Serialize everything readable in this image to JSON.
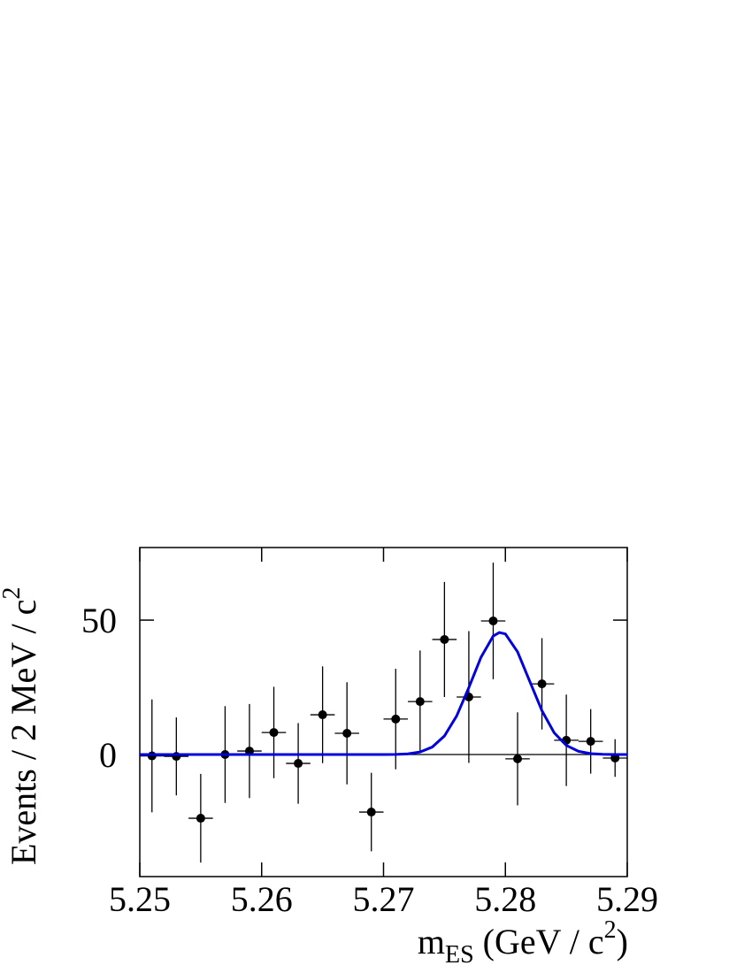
{
  "chart_data": {
    "type": "errorbar",
    "xlabel": {
      "main": "m",
      "sub": "ES",
      "rest": " (GeV / c",
      "sup": "2",
      "end": ")"
    },
    "ylabel": {
      "main": "Events / 2 MeV / c",
      "sup": "2"
    },
    "xlim": [
      5.25,
      5.29
    ],
    "ylim": [
      -45.4,
      77
    ],
    "xticks": [
      5.25,
      5.26,
      5.27,
      5.28,
      5.29
    ],
    "yticks": [
      0,
      50
    ],
    "series": [
      {
        "kind": "points",
        "color": "#000000",
        "x": [
          5.251,
          5.253,
          5.255,
          5.257,
          5.259,
          5.261,
          5.263,
          5.265,
          5.267,
          5.269,
          5.271,
          5.273,
          5.275,
          5.277,
          5.279,
          5.281,
          5.283,
          5.285,
          5.287,
          5.289
        ],
        "values": [
          -0.5,
          -0.7,
          -23.7,
          0,
          1.3,
          8.2,
          -3.3,
          14.8,
          7.9,
          -21.4,
          13.2,
          19.7,
          42.8,
          21.4,
          49.7,
          -1.6,
          26.3,
          5.3,
          4.9,
          -1.3
        ],
        "errors": [
          21,
          14.5,
          16.5,
          18,
          17.5,
          17,
          15,
          18,
          19,
          14.6,
          18.7,
          19,
          21.4,
          24.5,
          21.7,
          17.3,
          17,
          17,
          12,
          7
        ],
        "xerr": 0.001
      },
      {
        "kind": "curve",
        "color": "#0000dd",
        "x": [
          5.25,
          5.26,
          5.27,
          5.271,
          5.272,
          5.273,
          5.274,
          5.275,
          5.276,
          5.277,
          5.278,
          5.279,
          5.2795,
          5.28,
          5.281,
          5.282,
          5.283,
          5.284,
          5.285,
          5.286,
          5.287,
          5.288,
          5.289,
          5.29
        ],
        "values": [
          0,
          0,
          0.01,
          0.06,
          0.27,
          0.94,
          2.79,
          6.92,
          14.35,
          24.9,
          36.2,
          44.05,
          45.4,
          44.86,
          38.2,
          27.2,
          16.3,
          8.1,
          3.4,
          1.19,
          0.35,
          0.09,
          0.02,
          0
        ]
      }
    ]
  }
}
